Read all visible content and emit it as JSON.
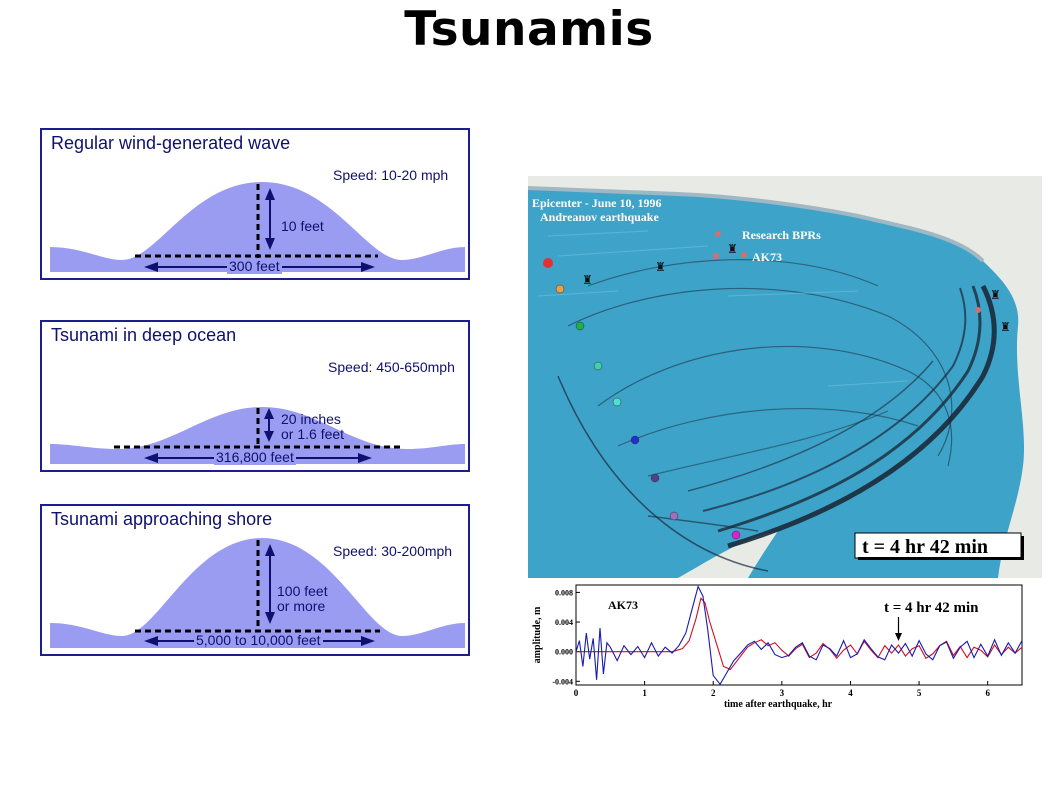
{
  "title": "Tsunamis",
  "colors": {
    "wave_fill": "#9a9cf2",
    "frame": "#1d1d8c",
    "label_text": "#10106e",
    "ocean": "#3ea3c9",
    "land": "#f0f1ee",
    "series_red": "#d01020",
    "series_blue": "#1a1ab0"
  },
  "panels": [
    {
      "title": "Regular wind-generated wave",
      "speed": "Speed: 10-20 mph",
      "height_label": "10 feet",
      "width_label": "300 feet"
    },
    {
      "title": "Tsunami in deep ocean",
      "speed": "Speed: 450-650mph",
      "height_label_1": "20 inches",
      "height_label_2": "or 1.6 feet",
      "width_label": "316,800 feet"
    },
    {
      "title": "Tsunami approaching shore",
      "speed": "Speed: 30-200mph",
      "height_label_1": "100 feet",
      "height_label_2": "or more",
      "width_label": "5,000 to 10,000 feet"
    }
  ],
  "map": {
    "epicenter_line1": "Epicenter - June 10, 1996",
    "epicenter_line2": "Andreanov earthquake",
    "bprs_label": "Research BPRs",
    "station_label": "AK73",
    "time_label": "t = 4 hr 42 min"
  },
  "chart_data": {
    "type": "line",
    "title": "AK73",
    "annotation": "t = 4 hr 42 min",
    "xlabel": "time after earthquake, hr",
    "ylabel": "amplitude, m",
    "xlim": [
      0,
      6.5
    ],
    "ylim": [
      -0.0045,
      0.009
    ],
    "x_ticks": [
      "0",
      "1",
      "2",
      "3",
      "4",
      "5",
      "6"
    ],
    "y_ticks": [
      "0.008",
      "0.004",
      "0.000",
      "-0.004"
    ],
    "annotation_x": 4.7,
    "series": [
      {
        "color": "#d01020",
        "x": [
          0,
          1.4,
          1.55,
          1.65,
          1.75,
          1.82,
          1.88,
          1.95,
          2.05,
          2.15,
          2.25,
          2.35,
          2.5,
          2.6,
          2.7,
          2.8,
          2.9,
          3.0,
          3.1,
          3.2,
          3.3,
          3.4,
          3.5,
          3.6,
          3.7,
          3.8,
          3.9,
          4.0,
          4.1,
          4.2,
          4.3,
          4.4,
          4.5,
          4.6,
          4.7,
          4.8,
          4.9,
          5.0,
          5.1,
          5.2,
          5.3,
          5.4,
          5.5,
          5.6,
          5.7,
          5.8,
          5.9,
          6.0,
          6.1,
          6.2,
          6.3,
          6.4,
          6.5
        ],
        "y": [
          0,
          0,
          0.0004,
          0.0015,
          0.0045,
          0.0072,
          0.0066,
          0.004,
          0.001,
          -0.002,
          -0.0024,
          -0.0012,
          0.0006,
          0.0012,
          0.0016,
          0.0008,
          0.0012,
          0.0002,
          -0.0006,
          0.0004,
          0.001,
          -0.0008,
          -0.0002,
          0.0011,
          0.0003,
          -0.0009,
          0.0002,
          0.0009,
          -0.0003,
          0.0014,
          0.0002,
          -0.0008,
          0.0008,
          -0.0002,
          0.0009,
          -0.0006,
          0.0004,
          0.0008,
          -0.0009,
          -0.0003,
          0.0008,
          0.0014,
          -0.0005,
          0.0007,
          -0.0008,
          0.0006,
          0.0002,
          -0.0007,
          0.0009,
          -0.0004,
          0.0006,
          -0.0002,
          0.0006
        ]
      },
      {
        "color": "#1a1ab0",
        "x": [
          0,
          0.05,
          0.1,
          0.15,
          0.2,
          0.25,
          0.3,
          0.35,
          0.4,
          0.45,
          0.5,
          0.6,
          0.7,
          0.8,
          0.9,
          1.0,
          1.1,
          1.2,
          1.3,
          1.4,
          1.5,
          1.6,
          1.7,
          1.78,
          1.85,
          1.92,
          2.0,
          2.1,
          2.2,
          2.3,
          2.4,
          2.5,
          2.6,
          2.7,
          2.8,
          2.9,
          3.0,
          3.1,
          3.2,
          3.3,
          3.4,
          3.5,
          3.6,
          3.7,
          3.8,
          3.9,
          4.0,
          4.1,
          4.2,
          4.3,
          4.4,
          4.5,
          4.6,
          4.7,
          4.8,
          4.9,
          5.0,
          5.1,
          5.2,
          5.3,
          5.4,
          5.5,
          5.6,
          5.7,
          5.8,
          5.9,
          6.0,
          6.1,
          6.2,
          6.3,
          6.4,
          6.5
        ],
        "y": [
          0,
          0.0015,
          -0.002,
          0.0025,
          -0.001,
          0.0018,
          -0.0038,
          0.0032,
          -0.003,
          0.0012,
          0.0006,
          -0.0012,
          0.0008,
          -0.0004,
          0.0007,
          -0.0008,
          0.0012,
          -0.0006,
          0.0006,
          -0.0002,
          0.0008,
          0.0025,
          0.006,
          0.0088,
          0.0075,
          0.003,
          -0.0032,
          -0.0044,
          -0.0028,
          -0.0012,
          -0.0002,
          0.0009,
          0.0014,
          0.0003,
          0.0012,
          -0.0004,
          -0.0008,
          -0.0005,
          0.0006,
          0.0012,
          -0.0006,
          -0.0011,
          0.0009,
          0.0004,
          -0.0006,
          0.0015,
          -0.0008,
          -0.0003,
          0.0016,
          0.0004,
          -0.0007,
          -0.0011,
          0.0009,
          -0.0002,
          0.0011,
          -0.0006,
          0.0015,
          -0.0003,
          -0.0011,
          0.0008,
          0.0013,
          -0.0009,
          0.0006,
          0.0014,
          -0.0008,
          0.001,
          -0.0006,
          0.0016,
          -0.0005,
          0.0012,
          -0.0002,
          0.0015
        ]
      }
    ]
  }
}
